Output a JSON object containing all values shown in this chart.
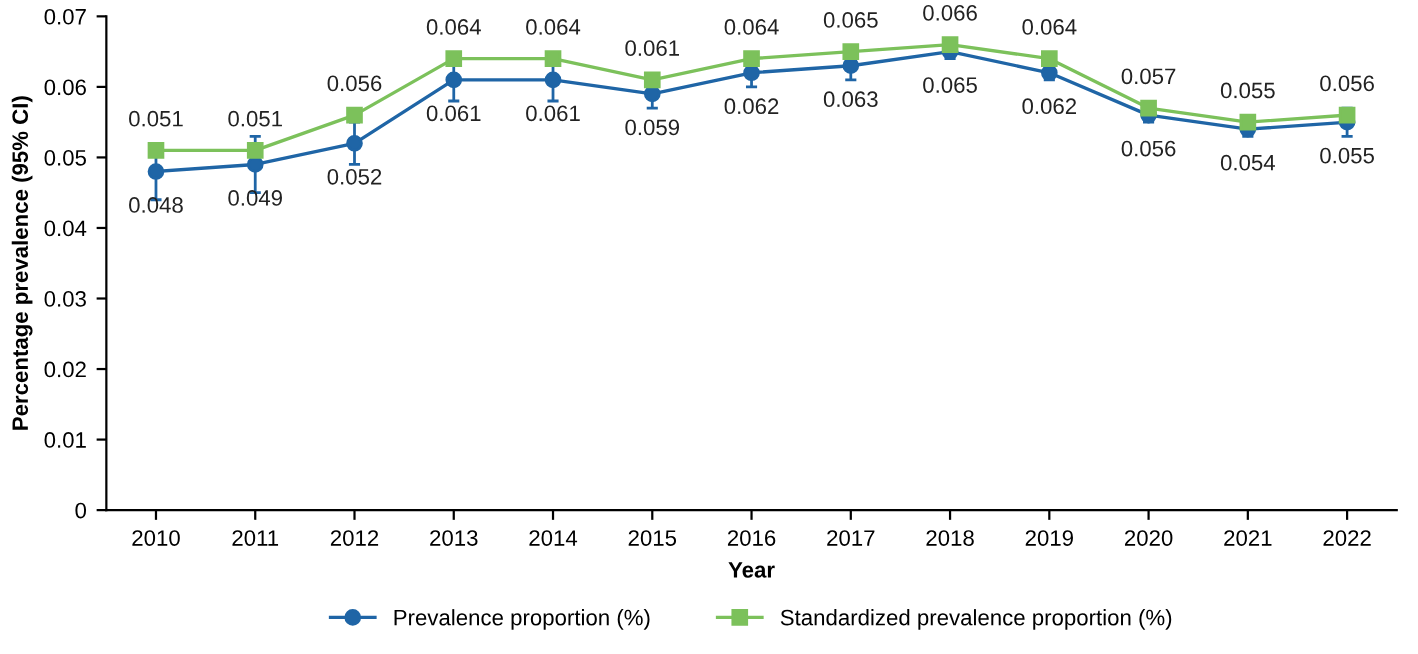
{
  "chart_data": {
    "type": "line",
    "xlabel": "Year",
    "ylabel": "Percentage prevalence (95% CI)",
    "categories": [
      "2010",
      "2011",
      "2012",
      "2013",
      "2014",
      "2015",
      "2016",
      "2017",
      "2018",
      "2019",
      "2020",
      "2021",
      "2022"
    ],
    "series": [
      {
        "name": "Prevalence proportion (%)",
        "color": "#1f65a6",
        "marker": "circle",
        "values": [
          0.048,
          0.049,
          0.052,
          0.061,
          0.061,
          0.059,
          0.062,
          0.063,
          0.065,
          0.062,
          0.056,
          0.054,
          0.055
        ],
        "errors": [
          0.004,
          0.004,
          0.003,
          0.003,
          0.003,
          0.002,
          0.002,
          0.002,
          0.001,
          0.001,
          0.001,
          0.001,
          0.002
        ]
      },
      {
        "name": "Standardized prevalence proportion (%)",
        "color": "#7cc15b",
        "marker": "square",
        "values": [
          0.051,
          0.051,
          0.056,
          0.064,
          0.064,
          0.061,
          0.064,
          0.065,
          0.066,
          0.064,
          0.057,
          0.055,
          0.056
        ]
      }
    ],
    "ylim": [
      0,
      0.07
    ],
    "yticks": [
      {
        "value": 0,
        "label": "0"
      },
      0.01,
      0.02,
      0.03,
      0.04,
      0.05,
      0.06,
      0.07
    ],
    "data_labels": true,
    "grid": false,
    "legend": "bottom",
    "line_style": "solid"
  }
}
